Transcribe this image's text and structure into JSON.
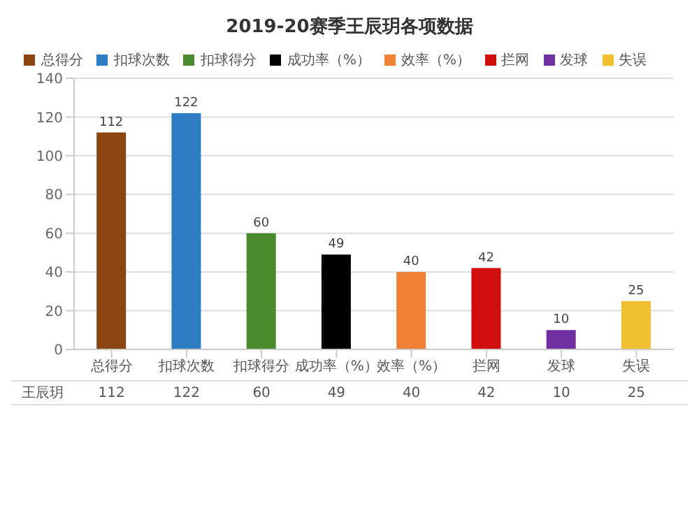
{
  "chart_data": {
    "type": "bar",
    "title": "2019-20赛季王辰玥各项数据",
    "categories": [
      "总得分",
      "扣球次数",
      "扣球得分",
      "成功率（%）",
      "效率（%）",
      "拦网",
      "发球",
      "失误"
    ],
    "stacked": true,
    "series": [
      {
        "name": "总得分",
        "color": "#8b4513",
        "values": [
          112,
          null,
          null,
          null,
          null,
          null,
          null,
          null
        ]
      },
      {
        "name": "扣球次数",
        "color": "#2e7cc4",
        "values": [
          null,
          122,
          null,
          null,
          null,
          null,
          null,
          null
        ]
      },
      {
        "name": "扣球得分",
        "color": "#4a8a2e",
        "values": [
          null,
          null,
          60,
          null,
          null,
          null,
          null,
          null
        ]
      },
      {
        "name": "成功率（%）",
        "color": "#000000",
        "values": [
          null,
          null,
          null,
          49,
          null,
          null,
          null,
          null
        ]
      },
      {
        "name": "效率（%）",
        "color": "#ee8133",
        "values": [
          null,
          null,
          null,
          null,
          40,
          null,
          null,
          null
        ]
      },
      {
        "name": "拦网",
        "color": "#d10e0e",
        "values": [
          null,
          null,
          null,
          null,
          null,
          42,
          null,
          null
        ]
      },
      {
        "name": "发球",
        "color": "#7030a0",
        "values": [
          null,
          null,
          null,
          null,
          null,
          null,
          10,
          null
        ]
      },
      {
        "name": "失误",
        "color": "#f0c030",
        "values": [
          null,
          null,
          null,
          null,
          null,
          null,
          null,
          25
        ]
      }
    ],
    "annotations": [
      "王辰玥"
    ],
    "totals": [
      "112",
      "122",
      "60",
      "49",
      "40",
      "42",
      "10",
      "25"
    ],
    "ylim": [
      0,
      140
    ],
    "yticks": [
      0,
      20,
      40,
      60,
      80,
      100,
      120,
      140
    ],
    "grid": "y",
    "legend": "top",
    "data_labels": true
  }
}
